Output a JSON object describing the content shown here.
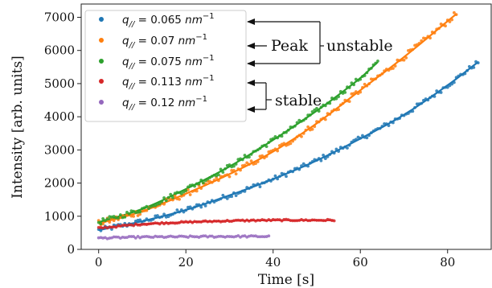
{
  "chart_data": {
    "type": "scatter",
    "xlabel": "Time [s]",
    "ylabel": "Intensity [arb. units]",
    "xlim": [
      -4,
      90
    ],
    "ylim": [
      0,
      7400
    ],
    "xticks": [
      0,
      20,
      40,
      60,
      80
    ],
    "yticks": [
      0,
      1000,
      2000,
      3000,
      4000,
      5000,
      6000,
      7000
    ],
    "grid": false,
    "legend_position": "top-left",
    "series": [
      {
        "name": "q// = 0.065 nm⁻¹",
        "label_main": "q",
        "label_sub": "//",
        "label_val": " = 0.065 ",
        "label_unit": "nm",
        "label_sup": "−1",
        "color": "#1f77b4",
        "fit": true,
        "x": [
          0,
          10,
          20,
          30,
          40,
          50,
          60,
          70,
          80,
          87
        ],
        "y": [
          580,
          850,
          1190,
          1630,
          2120,
          2680,
          3340,
          4060,
          4950,
          5650
        ]
      },
      {
        "name": "q// = 0.07 nm⁻¹",
        "label_main": "q",
        "label_sub": "//",
        "label_val": " = 0.07 ",
        "label_unit": "nm",
        "label_sup": "−1",
        "color": "#ff7f0e",
        "fit": true,
        "x": [
          0,
          10,
          20,
          30,
          40,
          50,
          60,
          70,
          82
        ],
        "y": [
          780,
          1150,
          1680,
          2270,
          2950,
          3800,
          4800,
          5800,
          7100
        ]
      },
      {
        "name": "q// = 0.075 nm⁻¹",
        "label_main": "q",
        "label_sub": "//",
        "label_val": " = 0.075 ",
        "label_unit": "nm",
        "label_sup": "−1",
        "color": "#2ca02c",
        "fit": true,
        "x": [
          0,
          10,
          20,
          30,
          40,
          50,
          55,
          60,
          64
        ],
        "y": [
          820,
          1220,
          1820,
          2500,
          3300,
          4180,
          4660,
          5170,
          5650
        ]
      },
      {
        "name": "q// = 0.113 nm⁻¹",
        "label_main": "q",
        "label_sub": "//",
        "label_val": " = 0.113 ",
        "label_unit": "nm",
        "label_sup": "−1",
        "color": "#d62728",
        "fit": true,
        "x": [
          0,
          10,
          20,
          30,
          40,
          50,
          54
        ],
        "y": [
          640,
          760,
          820,
          860,
          880,
          880,
          880
        ]
      },
      {
        "name": "q// = 0.12 nm⁻¹",
        "label_main": "q",
        "label_sub": "//",
        "label_val": " = 0.12 ",
        "label_unit": "nm",
        "label_sup": "−1",
        "color": "#9467bd",
        "fit": false,
        "x": [
          0,
          10,
          20,
          30,
          39
        ],
        "y": [
          340,
          370,
          380,
          390,
          390
        ]
      }
    ],
    "annotations": [
      {
        "text": "Peak",
        "arrow_to": "series 1-3"
      },
      {
        "text": "unstable"
      },
      {
        "text": "stable",
        "arrow_to": "series 4-5"
      }
    ]
  }
}
